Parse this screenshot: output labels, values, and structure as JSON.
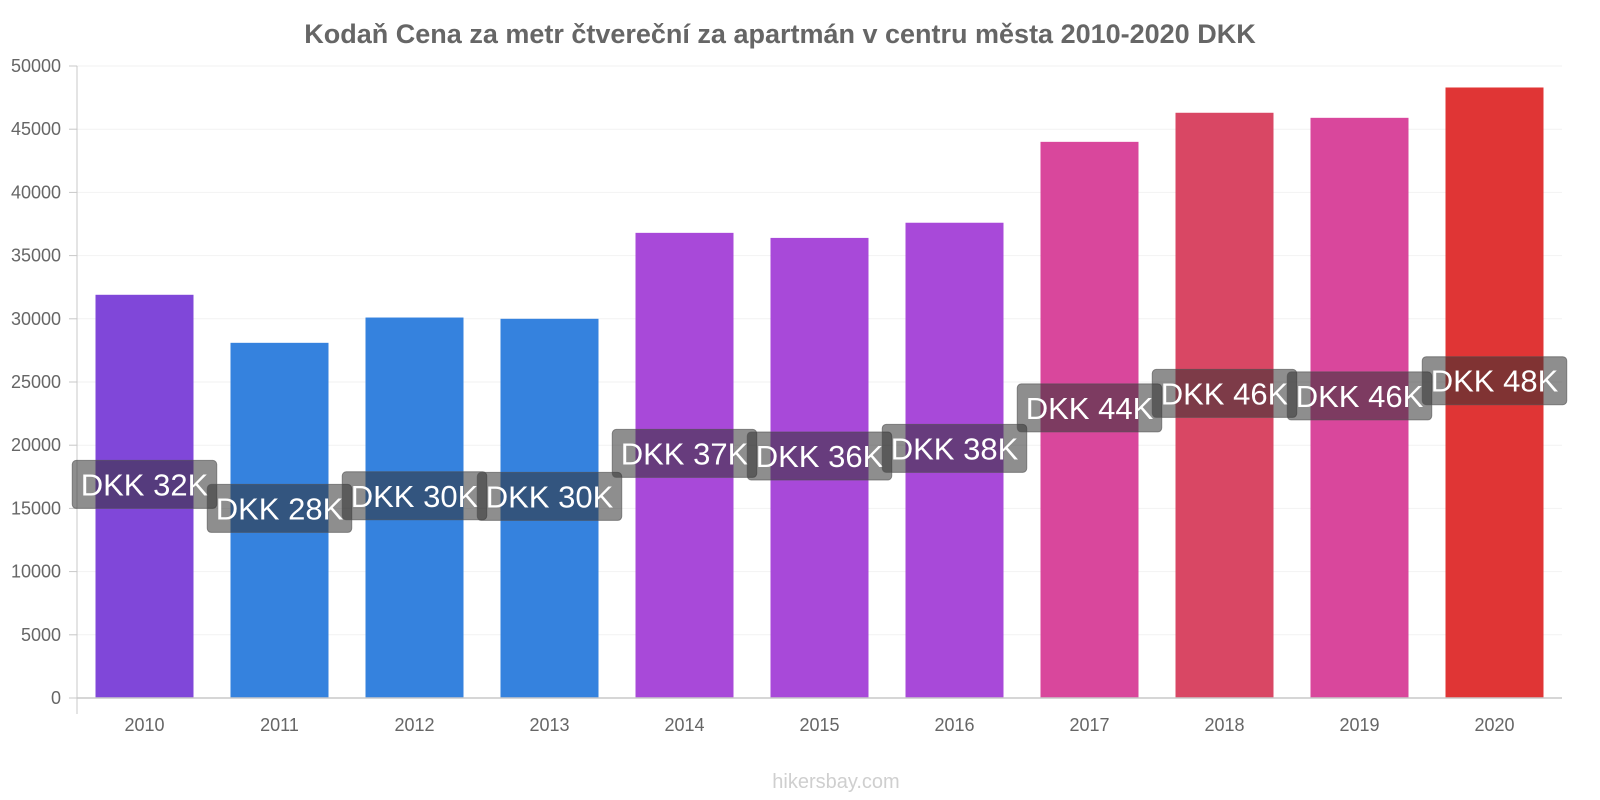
{
  "chart_data": {
    "type": "bar",
    "title": "Kodaň Cena za metr čtvereční za apartmán v centru města 2010-2020 DKK",
    "xlabel": "",
    "ylabel": "",
    "ylim": [
      0,
      50000
    ],
    "yticks": [
      0,
      5000,
      10000,
      15000,
      20000,
      25000,
      30000,
      35000,
      40000,
      45000,
      50000
    ],
    "categories": [
      "2010",
      "2011",
      "2012",
      "2013",
      "2014",
      "2015",
      "2016",
      "2017",
      "2018",
      "2019",
      "2020"
    ],
    "values": [
      31900,
      28100,
      30100,
      30000,
      36800,
      36400,
      37600,
      44000,
      46300,
      45900,
      48300
    ],
    "data_labels": [
      "DKK 32K",
      "DKK 28K",
      "DKK 30K",
      "DKK 30K",
      "DKK 37K",
      "DKK 36K",
      "DKK 38K",
      "DKK 44K",
      "DKK 46K",
      "DKK 46K",
      "DKK 48K"
    ],
    "colors": [
      "#8047d9",
      "#3582de",
      "#3582de",
      "#3582de",
      "#a849d9",
      "#a849d9",
      "#a849d9",
      "#d9479c",
      "#d94764",
      "#d9479c",
      "#e03535"
    ],
    "legend": "none",
    "grid": true
  },
  "watermark": "hikersbay.com"
}
